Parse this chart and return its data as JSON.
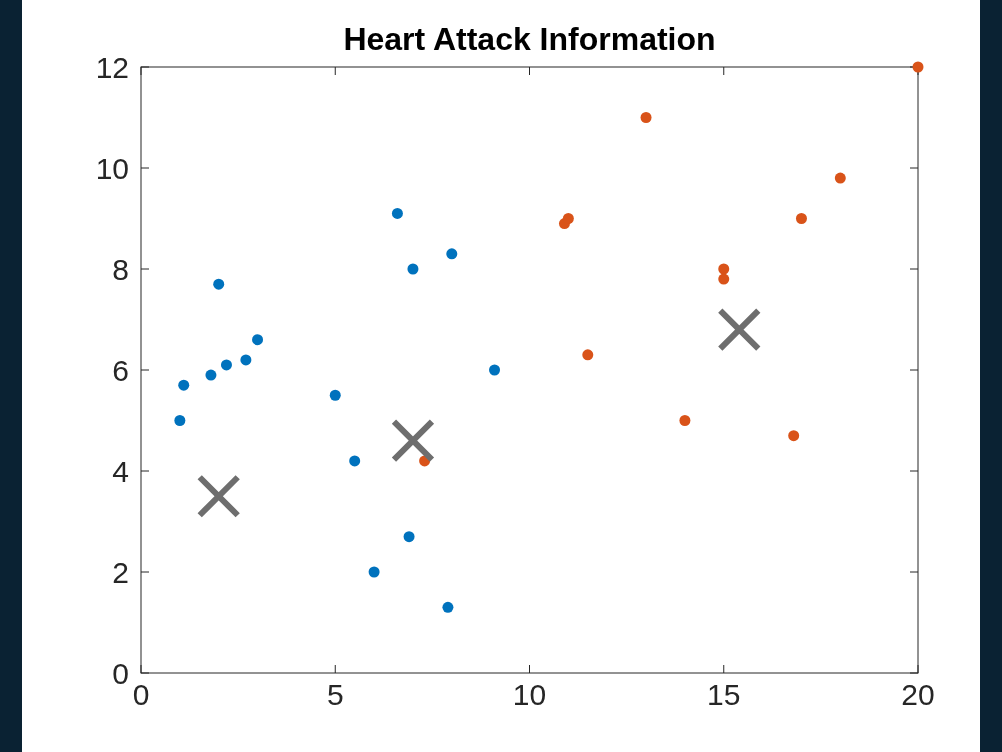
{
  "chart_data": {
    "type": "scatter",
    "title": "Heart Attack Information",
    "xlim": [
      0,
      20
    ],
    "xticks": [
      0,
      5,
      10,
      15,
      20
    ],
    "ylim": [
      0,
      12
    ],
    "yticks": [
      0,
      2,
      4,
      6,
      8,
      10,
      12
    ],
    "grid": false,
    "series": [
      {
        "color": "#0072bd",
        "marker": "circle",
        "x": [
          1,
          1.1,
          1.8,
          2.2,
          2,
          2.7,
          3,
          5,
          5.5,
          6.6,
          7,
          8,
          9.1,
          6,
          6.9,
          7.9
        ],
        "values": [
          5,
          5.7,
          5.9,
          6.1,
          7.7,
          6.2,
          6.6,
          5.5,
          4.2,
          9.1,
          8,
          8.3,
          6,
          2,
          2.7,
          1.3
        ]
      },
      {
        "color": "#d95319",
        "marker": "circle",
        "x": [
          7.3,
          10.9,
          11,
          11.5,
          13,
          14,
          15,
          15,
          16.8,
          17,
          18,
          20
        ],
        "values": [
          4.2,
          8.9,
          9,
          6.3,
          11,
          5,
          8,
          7.8,
          4.7,
          9,
          9.8,
          12
        ]
      },
      {
        "color": "#6e6e6e",
        "marker": "cross",
        "x": [
          2,
          7,
          15.4
        ],
        "values": [
          3.5,
          4.6,
          6.8
        ]
      }
    ]
  }
}
